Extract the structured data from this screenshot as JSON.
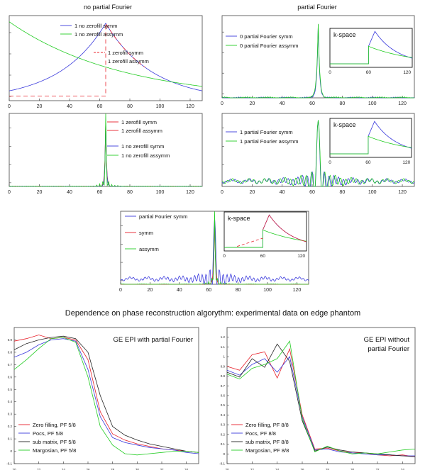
{
  "headings": {
    "left_column": "no partial Fourier",
    "right_column": "partial Fourier",
    "experimental": "Dependence on phase reconstruction algorythm: experimental data on edge phantom"
  },
  "colors": {
    "red": "#e8202a",
    "green": "#22cc22",
    "blue": "#3a3adc",
    "black": "#222222"
  },
  "chart_data": [
    {
      "id": "p1",
      "type": "line",
      "title": "no partial Fourier",
      "xlim": [
        0,
        128
      ],
      "xticks": [
        0,
        20,
        40,
        60,
        80,
        100,
        120
      ],
      "ylim": [
        0,
        1.1
      ],
      "series": [
        {
          "name": "1 no zerofill symm",
          "color": "blue",
          "shape": "symm_exp",
          "peak": 64,
          "tau": 31,
          "amp": 1.0
        },
        {
          "name": "1 no zerofill assymm",
          "color": "green",
          "shape": "decay",
          "tau": 75,
          "amp": 1.02
        },
        {
          "name": "1 zerofill symm",
          "color": "red",
          "shape": "step_symm",
          "cut": 64,
          "base": 0.06,
          "peak": 64,
          "tau": 31,
          "dashed": true
        },
        {
          "name": "1 zerofill assymm",
          "color": "red",
          "shape": "none"
        }
      ],
      "inset": null
    },
    {
      "id": "p2",
      "type": "line",
      "title": "partial Fourier",
      "xlim": [
        0,
        128
      ],
      "xticks": [
        0,
        20,
        40,
        60,
        80,
        100,
        120
      ],
      "ylim": [
        0,
        1.1
      ],
      "series": [
        {
          "name": "0 partial Fourier symm",
          "color": "blue",
          "shape": "peak",
          "peak": 64,
          "width": 0.9,
          "noise": 0.012
        },
        {
          "name": "0 partial Fourier assymm",
          "color": "green",
          "shape": "peak",
          "peak": 64,
          "width": 1.0,
          "noise": 0.015
        }
      ],
      "inset": {
        "label": "k-space",
        "xticks": [
          0,
          60,
          120
        ],
        "cut": 60,
        "peak": 70
      }
    },
    {
      "id": "p3",
      "type": "line",
      "title": "",
      "xlim": [
        0,
        128
      ],
      "xticks": [
        0,
        20,
        40,
        60,
        80,
        100,
        120
      ],
      "ylim": [
        0,
        1.1
      ],
      "series": [
        {
          "name": "1 zerofill symm",
          "color": "red",
          "shape": "peak",
          "peak": 64,
          "width": 0.55,
          "noise": 0.006
        },
        {
          "name": "1 zerofill assymm",
          "color": "red",
          "shape": "none"
        },
        {
          "name": "1 no zerofill symm",
          "color": "blue",
          "shape": "peak",
          "peak": 64,
          "width": 0.5,
          "noise": 0.005
        },
        {
          "name": "1 no zerofill assymm",
          "color": "green",
          "shape": "peak_ring",
          "peak": 64,
          "width": 0.45,
          "noise": 0.006
        }
      ],
      "inset": null
    },
    {
      "id": "p4",
      "type": "line",
      "title": "",
      "xlim": [
        0,
        128
      ],
      "xticks": [
        0,
        20,
        40,
        60,
        80,
        100,
        120
      ],
      "ylim": [
        0,
        1.1
      ],
      "series": [
        {
          "name": "1 partial Fourier symm",
          "color": "blue",
          "shape": "sinc",
          "peak": 64,
          "width": 1.6
        },
        {
          "name": "1 partial Fourier assymm",
          "color": "green",
          "shape": "sinc",
          "peak": 64,
          "width": 1.75
        }
      ],
      "inset": {
        "label": "k-space",
        "xticks": [
          0,
          60,
          120
        ],
        "cut": 60,
        "peak": 70
      }
    },
    {
      "id": "p5",
      "type": "line",
      "title": "",
      "xlim": [
        0,
        128
      ],
      "xticks": [
        0,
        20,
        40,
        60,
        80,
        100,
        120
      ],
      "ylim": [
        0,
        1.1
      ],
      "series": [
        {
          "name": "partial Fourier symm",
          "color": "blue",
          "shape": "sinc",
          "peak": 64,
          "width": 1.3
        },
        {
          "name": "symm",
          "color": "red",
          "shape": "peak",
          "peak": 64,
          "width": 0.6,
          "noise": 0.004
        },
        {
          "name": "assymm",
          "color": "green",
          "shape": "peak_ring",
          "peak": 64,
          "width": 0.55,
          "noise": 0.006
        }
      ],
      "inset": {
        "label": "k-space",
        "xticks": [
          0,
          60,
          120
        ],
        "cut": 60,
        "peak": 70,
        "red": true
      }
    },
    {
      "id": "p6",
      "type": "line",
      "title": "GE EPI with partial Fourier",
      "xlim": [
        20,
        35
      ],
      "xticks": [
        20,
        22,
        24,
        26,
        28,
        30,
        32,
        34
      ],
      "ylim": [
        -0.1,
        1.0
      ],
      "yticks": [
        -0.1,
        0,
        0.1,
        0.2,
        0.3,
        0.4,
        0.5,
        0.6,
        0.7,
        0.8,
        0.9
      ],
      "x": [
        20,
        21,
        22,
        23,
        24,
        25,
        26,
        27,
        28,
        29,
        30,
        31,
        32,
        33,
        34,
        35
      ],
      "series": [
        {
          "name": "Zero filling, PF 5/8",
          "color": "red",
          "values": [
            0.89,
            0.91,
            0.94,
            0.91,
            0.92,
            0.9,
            0.74,
            0.32,
            0.14,
            0.09,
            0.06,
            0.04,
            0.02,
            0.01,
            0.0,
            -0.01
          ]
        },
        {
          "name": "Pocs, PF 5/8",
          "color": "blue",
          "values": [
            0.76,
            0.8,
            0.86,
            0.9,
            0.91,
            0.89,
            0.66,
            0.28,
            0.11,
            0.07,
            0.05,
            0.03,
            0.02,
            0.01,
            -0.01,
            -0.02
          ]
        },
        {
          "name": "sub matrix, PF 5/8",
          "color": "black",
          "values": [
            0.82,
            0.87,
            0.9,
            0.92,
            0.93,
            0.91,
            0.8,
            0.45,
            0.2,
            0.13,
            0.09,
            0.06,
            0.04,
            0.02,
            0.0,
            -0.01
          ]
        },
        {
          "name": "Margosian, PF 5/8",
          "color": "green",
          "values": [
            0.66,
            0.74,
            0.83,
            0.91,
            0.92,
            0.88,
            0.6,
            0.2,
            0.05,
            -0.02,
            -0.03,
            -0.02,
            -0.01,
            0.0,
            0.0,
            -0.01
          ]
        }
      ]
    },
    {
      "id": "p7",
      "type": "line",
      "title": "GE EPI without partial Fourier",
      "xlim": [
        20,
        35
      ],
      "xticks": [
        20,
        22,
        24,
        26,
        28,
        30,
        32,
        34
      ],
      "ylim": [
        -0.1,
        1.3
      ],
      "yticks": [
        -0.1,
        0,
        0.1,
        0.2,
        0.3,
        0.4,
        0.5,
        0.6,
        0.7,
        0.8,
        0.9,
        1.0,
        1.1,
        1.2
      ],
      "x": [
        20,
        21,
        22,
        23,
        24,
        25,
        26,
        27,
        28,
        29,
        30,
        31,
        32,
        33,
        34,
        35
      ],
      "series": [
        {
          "name": "Zero filling, PF 8/8",
          "color": "red",
          "values": [
            0.9,
            0.86,
            1.02,
            1.05,
            0.78,
            1.08,
            0.4,
            0.05,
            0.06,
            0.03,
            0.01,
            0.01,
            -0.01,
            -0.02,
            -0.01,
            -0.03
          ]
        },
        {
          "name": "Pocs, PF 8/8",
          "color": "blue",
          "values": [
            0.86,
            0.81,
            0.92,
            0.98,
            0.84,
            1.0,
            0.38,
            0.04,
            0.05,
            0.02,
            0.01,
            0.0,
            -0.01,
            -0.01,
            -0.02,
            -0.02
          ]
        },
        {
          "name": "sub matrix, PF 8/8",
          "color": "black",
          "values": [
            0.84,
            0.79,
            0.98,
            0.89,
            1.13,
            0.95,
            0.34,
            0.03,
            0.07,
            0.04,
            0.02,
            0.01,
            0.0,
            -0.01,
            -0.02,
            -0.03
          ]
        },
        {
          "name": "Margosian, PF 8/8",
          "color": "green",
          "values": [
            0.82,
            0.77,
            0.88,
            0.92,
            0.98,
            1.16,
            0.36,
            0.02,
            0.08,
            0.03,
            0.0,
            0.01,
            0.0,
            0.02,
            0.04,
            0.05
          ]
        }
      ]
    }
  ]
}
